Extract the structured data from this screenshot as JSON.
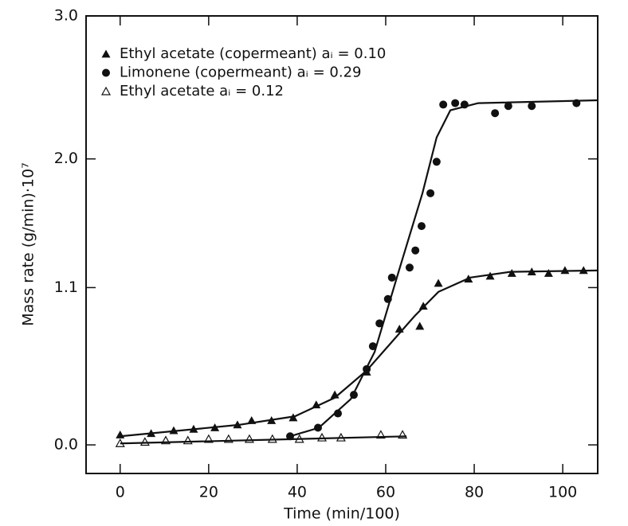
{
  "chart_data": {
    "type": "scatter",
    "xlabel": "Time (min/100)",
    "ylabel": "Mass rate (g/min)·10⁷",
    "xlim": [
      -7.7,
      107.9
    ],
    "ylim": [
      -0.2,
      3.0
    ],
    "xticks": [
      0,
      20,
      40,
      60,
      80,
      100
    ],
    "yticks": [
      {
        "value": 0,
        "label": "0.0"
      },
      1.1,
      {
        "value": 2,
        "label": "2.0"
      },
      {
        "value": 3,
        "label": "3.0"
      }
    ],
    "legend": "upper left",
    "series": [
      {
        "name": "Ethyl acetate (copermeant) aᵢ = 0.10",
        "color": "#111",
        "marker": "filled-triangle",
        "x": [
          0,
          7.0,
          12.1,
          16.6,
          21.4,
          26.5,
          29.7,
          34.2,
          39.1,
          44.3,
          48.5,
          55.7,
          63.1,
          67.7,
          68.5,
          71.9,
          78.7,
          83.6,
          88.5,
          93.0,
          96.8,
          100.5,
          104.7
        ],
        "values": [
          0.07,
          0.08,
          0.1,
          0.11,
          0.12,
          0.14,
          0.17,
          0.17,
          0.19,
          0.28,
          0.35,
          0.51,
          0.81,
          0.83,
          0.97,
          1.13,
          1.16,
          1.18,
          1.2,
          1.21,
          1.2,
          1.22,
          1.22
        ]
      },
      {
        "name": "Limonene (copermeant) aᵢ = 0.29",
        "color": "#111",
        "marker": "filled-circle",
        "x": [
          38.4,
          44.7,
          49.2,
          52.8,
          55.7,
          57.1,
          58.6,
          60.5,
          61.4,
          65.4,
          66.7,
          68.1,
          70.1,
          71.5,
          73.0,
          75.7,
          77.8,
          84.7,
          87.7,
          93.0,
          103.1
        ],
        "values": [
          0.06,
          0.12,
          0.22,
          0.35,
          0.53,
          0.69,
          0.85,
          1.02,
          1.17,
          1.24,
          1.36,
          1.53,
          1.76,
          1.98,
          2.38,
          2.39,
          2.38,
          2.32,
          2.37,
          2.37,
          2.39
        ]
      },
      {
        "name": "Ethyl acetate aᵢ = 0.12",
        "color": "#111",
        "marker": "open-triangle",
        "x": [
          0,
          5.6,
          10.3,
          15.3,
          20.0,
          24.5,
          29.2,
          34.4,
          40.5,
          45.6,
          49.9,
          58.9,
          63.8
        ],
        "values": [
          0.01,
          0.02,
          0.03,
          0.03,
          0.04,
          0.04,
          0.04,
          0.04,
          0.04,
          0.05,
          0.05,
          0.07,
          0.07
        ]
      },
      {
        "color": "#111",
        "marker": "line",
        "x": [
          0,
          26.8,
          39.5,
          48.5,
          55.7,
          61.1,
          66.5,
          71.9,
          79.1,
          88.1,
          107.9
        ],
        "values": [
          0.06,
          0.14,
          0.2,
          0.33,
          0.52,
          0.71,
          0.9,
          1.07,
          1.17,
          1.21,
          1.22
        ]
      },
      {
        "color": "#111",
        "marker": "line",
        "x": [
          38.4,
          44.9,
          52.1,
          57.5,
          62.9,
          68.3,
          71.5,
          74.6,
          80.9,
          107.9
        ],
        "values": [
          0.06,
          0.12,
          0.32,
          0.65,
          1.21,
          1.76,
          2.15,
          2.34,
          2.39,
          2.41
        ]
      },
      {
        "color": "#111",
        "marker": "line",
        "x": [
          0,
          64.7
        ],
        "values": [
          0.01,
          0.06
        ]
      }
    ]
  }
}
